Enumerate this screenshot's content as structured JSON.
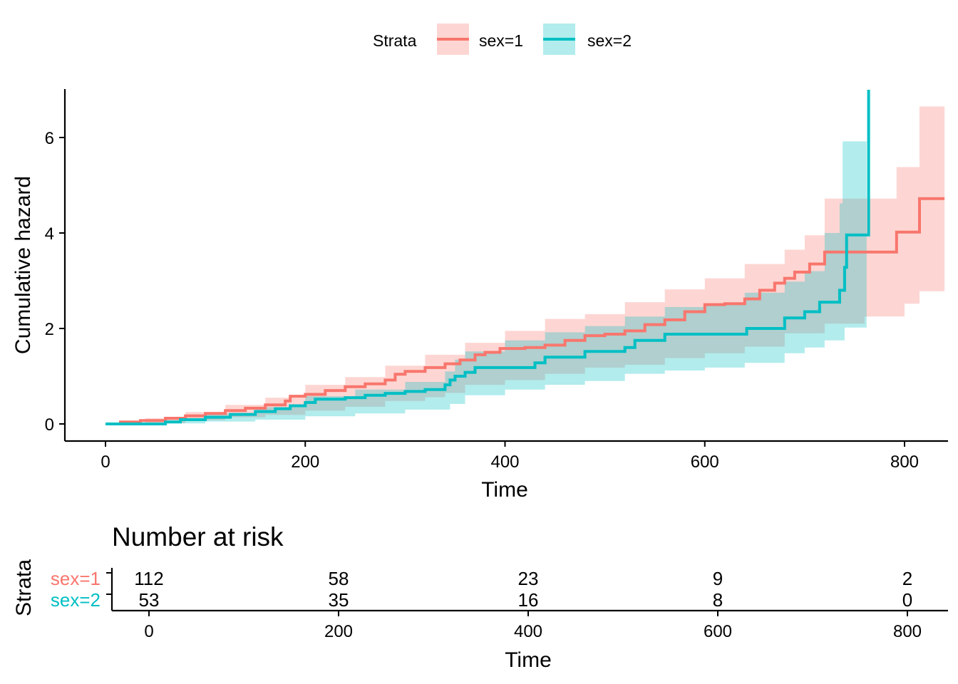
{
  "legend": {
    "title": "Strata",
    "entries": [
      {
        "label": "sex=1",
        "color": "#F8766D"
      },
      {
        "label": "sex=2",
        "color": "#00BFC4"
      }
    ]
  },
  "chart_data": [
    {
      "type": "line",
      "subtype": "cumulative-hazard-step",
      "xlabel": "Time",
      "ylabel": "Cumulative hazard",
      "xlim": [
        -100,
        840
      ],
      "ylim": [
        -0.3,
        7
      ],
      "xticks": [
        0,
        200,
        400,
        600,
        800
      ],
      "yticks": [
        0,
        2,
        4,
        6
      ],
      "grid": false,
      "legend_position": "top",
      "series": [
        {
          "name": "sex=1",
          "color": "#F8766D",
          "points": [
            [
              0,
              0
            ],
            [
              15,
              0.04
            ],
            [
              35,
              0.07
            ],
            [
              60,
              0.12
            ],
            [
              80,
              0.17
            ],
            [
              100,
              0.22
            ],
            [
              120,
              0.28
            ],
            [
              140,
              0.33
            ],
            [
              160,
              0.4
            ],
            [
              180,
              0.48
            ],
            [
              185,
              0.58
            ],
            [
              200,
              0.62
            ],
            [
              220,
              0.7
            ],
            [
              240,
              0.78
            ],
            [
              260,
              0.84
            ],
            [
              280,
              0.92
            ],
            [
              290,
              1.04
            ],
            [
              300,
              1.1
            ],
            [
              320,
              1.18
            ],
            [
              340,
              1.26
            ],
            [
              355,
              1.34
            ],
            [
              370,
              1.45
            ],
            [
              380,
              1.5
            ],
            [
              395,
              1.58
            ],
            [
              420,
              1.6
            ],
            [
              440,
              1.65
            ],
            [
              460,
              1.75
            ],
            [
              480,
              1.85
            ],
            [
              500,
              1.88
            ],
            [
              520,
              1.95
            ],
            [
              540,
              2.08
            ],
            [
              560,
              2.18
            ],
            [
              580,
              2.35
            ],
            [
              600,
              2.5
            ],
            [
              620,
              2.52
            ],
            [
              640,
              2.62
            ],
            [
              655,
              2.8
            ],
            [
              670,
              2.95
            ],
            [
              680,
              3.05
            ],
            [
              690,
              3.18
            ],
            [
              705,
              3.35
            ],
            [
              720,
              3.6
            ],
            [
              790,
              3.6
            ],
            [
              792,
              4.02
            ],
            [
              812,
              4.02
            ],
            [
              815,
              4.72
            ],
            [
              840,
              4.72
            ]
          ],
          "ci_lower": [
            [
              0,
              0
            ],
            [
              40,
              0.02
            ],
            [
              80,
              0.08
            ],
            [
              120,
              0.14
            ],
            [
              160,
              0.19
            ],
            [
              200,
              0.28
            ],
            [
              240,
              0.36
            ],
            [
              280,
              0.48
            ],
            [
              320,
              0.56
            ],
            [
              340,
              0.65
            ],
            [
              360,
              0.82
            ],
            [
              400,
              0.92
            ],
            [
              440,
              1.05
            ],
            [
              480,
              1.18
            ],
            [
              520,
              1.24
            ],
            [
              560,
              1.38
            ],
            [
              600,
              1.48
            ],
            [
              640,
              1.62
            ],
            [
              680,
              1.9
            ],
            [
              720,
              2.1
            ],
            [
              760,
              2.25
            ],
            [
              800,
              2.52
            ],
            [
              815,
              2.78
            ],
            [
              840,
              2.78
            ]
          ],
          "ci_upper": [
            [
              0,
              0
            ],
            [
              40,
              0.12
            ],
            [
              80,
              0.25
            ],
            [
              120,
              0.4
            ],
            [
              160,
              0.55
            ],
            [
              200,
              0.82
            ],
            [
              240,
              0.98
            ],
            [
              280,
              1.22
            ],
            [
              320,
              1.45
            ],
            [
              360,
              1.7
            ],
            [
              400,
              1.95
            ],
            [
              440,
              2.2
            ],
            [
              480,
              2.3
            ],
            [
              520,
              2.55
            ],
            [
              560,
              2.82
            ],
            [
              600,
              3.05
            ],
            [
              640,
              3.35
            ],
            [
              680,
              3.65
            ],
            [
              700,
              3.95
            ],
            [
              720,
              4.72
            ],
            [
              790,
              4.72
            ],
            [
              792,
              5.38
            ],
            [
              815,
              6.65
            ],
            [
              840,
              6.65
            ]
          ]
        },
        {
          "name": "sex=2",
          "color": "#00BFC4",
          "points": [
            [
              0,
              0
            ],
            [
              60,
              0.04
            ],
            [
              75,
              0.09
            ],
            [
              100,
              0.14
            ],
            [
              125,
              0.2
            ],
            [
              150,
              0.26
            ],
            [
              170,
              0.32
            ],
            [
              185,
              0.38
            ],
            [
              200,
              0.45
            ],
            [
              210,
              0.52
            ],
            [
              240,
              0.55
            ],
            [
              260,
              0.6
            ],
            [
              280,
              0.64
            ],
            [
              300,
              0.68
            ],
            [
              320,
              0.72
            ],
            [
              340,
              0.82
            ],
            [
              345,
              0.92
            ],
            [
              350,
              1.0
            ],
            [
              360,
              1.08
            ],
            [
              370,
              1.18
            ],
            [
              420,
              1.18
            ],
            [
              430,
              1.28
            ],
            [
              440,
              1.4
            ],
            [
              480,
              1.52
            ],
            [
              520,
              1.6
            ],
            [
              530,
              1.75
            ],
            [
              560,
              1.88
            ],
            [
              640,
              1.88
            ],
            [
              642,
              2.0
            ],
            [
              680,
              2.22
            ],
            [
              700,
              2.35
            ],
            [
              715,
              2.55
            ],
            [
              735,
              2.8
            ],
            [
              740,
              3.28
            ],
            [
              742,
              3.96
            ],
            [
              762,
              3.96
            ],
            [
              764,
              7.0
            ]
          ],
          "ci_lower": [
            [
              0,
              0
            ],
            [
              60,
              0.01
            ],
            [
              100,
              0.05
            ],
            [
              150,
              0.09
            ],
            [
              200,
              0.16
            ],
            [
              250,
              0.22
            ],
            [
              300,
              0.3
            ],
            [
              345,
              0.42
            ],
            [
              360,
              0.6
            ],
            [
              400,
              0.72
            ],
            [
              440,
              0.82
            ],
            [
              480,
              0.9
            ],
            [
              520,
              1.05
            ],
            [
              560,
              1.12
            ],
            [
              600,
              1.18
            ],
            [
              640,
              1.28
            ],
            [
              680,
              1.48
            ],
            [
              700,
              1.6
            ],
            [
              720,
              1.75
            ],
            [
              740,
              2.02
            ],
            [
              762,
              2.02
            ]
          ],
          "ci_upper": [
            [
              0,
              0
            ],
            [
              60,
              0.08
            ],
            [
              100,
              0.22
            ],
            [
              150,
              0.35
            ],
            [
              200,
              0.58
            ],
            [
              250,
              0.72
            ],
            [
              300,
              0.88
            ],
            [
              340,
              1.1
            ],
            [
              350,
              1.35
            ],
            [
              360,
              1.52
            ],
            [
              400,
              1.75
            ],
            [
              440,
              1.92
            ],
            [
              480,
              2.05
            ],
            [
              520,
              2.25
            ],
            [
              560,
              2.45
            ],
            [
              600,
              2.52
            ],
            [
              640,
              2.75
            ],
            [
              680,
              2.98
            ],
            [
              700,
              3.2
            ],
            [
              720,
              4.0
            ],
            [
              735,
              4.62
            ],
            [
              738,
              5.92
            ],
            [
              762,
              5.92
            ]
          ]
        }
      ]
    },
    {
      "type": "table",
      "title": "Number at risk",
      "xlabel": "Time",
      "ylabel": "Strata",
      "xticks": [
        0,
        200,
        400,
        600,
        800
      ],
      "rows": [
        {
          "label": "sex=1",
          "color": "#F8766D",
          "values": [
            "112",
            "58",
            "23",
            "9",
            "2"
          ]
        },
        {
          "label": "sex=2",
          "color": "#00BFC4",
          "values": [
            "53",
            "35",
            "16",
            "8",
            "0"
          ]
        }
      ]
    }
  ]
}
